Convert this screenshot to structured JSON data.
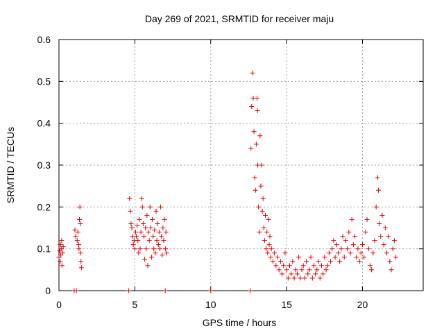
{
  "chart_data": {
    "type": "scatter",
    "title": "Day 269 of 2021, SRMTID for receiver maju",
    "xlabel": "GPS time / hours",
    "ylabel": "SRMTID / TECUs",
    "xlim": [
      0,
      24
    ],
    "ylim": [
      0,
      0.6
    ],
    "xticks": [
      0,
      5,
      10,
      15,
      20
    ],
    "yticks": [
      0,
      0.1,
      0.2,
      0.3,
      0.4,
      0.5,
      0.6
    ],
    "xtick_labels": [
      "0",
      "5",
      "10",
      "15",
      "20"
    ],
    "ytick_labels": [
      "0",
      "0.1",
      "0.2",
      "0.3",
      "0.4",
      "0.5",
      "0.6"
    ],
    "grid": true,
    "marker": "+",
    "series": [
      {
        "name": "SRMTID",
        "color": "#e00000",
        "points": [
          [
            0.0,
            0.08
          ],
          [
            0.05,
            0.095
          ],
          [
            0.08,
            0.07
          ],
          [
            0.1,
            0.11
          ],
          [
            0.12,
            0.085
          ],
          [
            0.15,
            0.1
          ],
          [
            0.18,
            0.12
          ],
          [
            0.2,
            0.06
          ],
          [
            0.25,
            0.09
          ],
          [
            0.28,
            0.105
          ],
          [
            1.0,
            0.0
          ],
          [
            1.15,
            0.0
          ],
          [
            1.05,
            0.145
          ],
          [
            1.1,
            0.13
          ],
          [
            1.2,
            0.12
          ],
          [
            1.25,
            0.14
          ],
          [
            1.3,
            0.11
          ],
          [
            1.32,
            0.1
          ],
          [
            1.35,
            0.17
          ],
          [
            1.38,
            0.2
          ],
          [
            1.4,
            0.16
          ],
          [
            1.42,
            0.09
          ],
          [
            1.45,
            0.07
          ],
          [
            1.48,
            0.055
          ],
          [
            4.6,
            0.0
          ],
          [
            4.65,
            0.22
          ],
          [
            4.7,
            0.19
          ],
          [
            4.75,
            0.16
          ],
          [
            4.8,
            0.15
          ],
          [
            4.85,
            0.13
          ],
          [
            4.9,
            0.11
          ],
          [
            4.95,
            0.12
          ],
          [
            5.0,
            0.1
          ],
          [
            5.05,
            0.14
          ],
          [
            5.1,
            0.13
          ],
          [
            5.15,
            0.155
          ],
          [
            5.2,
            0.12
          ],
          [
            5.25,
            0.09
          ],
          [
            5.3,
            0.17
          ],
          [
            5.35,
            0.1
          ],
          [
            5.4,
            0.14
          ],
          [
            5.45,
            0.22
          ],
          [
            5.5,
            0.2
          ],
          [
            5.55,
            0.16
          ],
          [
            5.6,
            0.13
          ],
          [
            5.65,
            0.075
          ],
          [
            5.7,
            0.15
          ],
          [
            5.75,
            0.1
          ],
          [
            5.8,
            0.18
          ],
          [
            5.85,
            0.06
          ],
          [
            5.9,
            0.14
          ],
          [
            5.95,
            0.12
          ],
          [
            6.0,
            0.2
          ],
          [
            6.05,
            0.15
          ],
          [
            6.1,
            0.08
          ],
          [
            6.15,
            0.17
          ],
          [
            6.2,
            0.13
          ],
          [
            6.25,
            0.1
          ],
          [
            6.3,
            0.145
          ],
          [
            6.35,
            0.09
          ],
          [
            6.4,
            0.19
          ],
          [
            6.45,
            0.12
          ],
          [
            6.5,
            0.16
          ],
          [
            6.55,
            0.11
          ],
          [
            6.6,
            0.14
          ],
          [
            6.65,
            0.1
          ],
          [
            6.7,
            0.2
          ],
          [
            6.75,
            0.13
          ],
          [
            6.8,
            0.085
          ],
          [
            6.85,
            0.15
          ],
          [
            6.9,
            0.12
          ],
          [
            6.95,
            0.17
          ],
          [
            7.0,
            0.0
          ],
          [
            7.02,
            0.1
          ],
          [
            7.05,
            0.14
          ],
          [
            7.1,
            0.09
          ],
          [
            10.0,
            0.0
          ],
          [
            12.6,
            0.0
          ],
          [
            12.65,
            0.34
          ],
          [
            12.7,
            0.44
          ],
          [
            12.75,
            0.52
          ],
          [
            12.8,
            0.46
          ],
          [
            12.85,
            0.38
          ],
          [
            12.9,
            0.27
          ],
          [
            12.95,
            0.24
          ],
          [
            13.0,
            0.35
          ],
          [
            13.05,
            0.46
          ],
          [
            13.08,
            0.43
          ],
          [
            13.1,
            0.3
          ],
          [
            13.15,
            0.2
          ],
          [
            13.2,
            0.14
          ],
          [
            13.25,
            0.37
          ],
          [
            13.3,
            0.25
          ],
          [
            13.35,
            0.3
          ],
          [
            13.4,
            0.19
          ],
          [
            13.45,
            0.22
          ],
          [
            13.5,
            0.15
          ],
          [
            13.55,
            0.12
          ],
          [
            13.6,
            0.18
          ],
          [
            13.65,
            0.1
          ],
          [
            13.7,
            0.14
          ],
          [
            13.75,
            0.09
          ],
          [
            13.8,
            0.17
          ],
          [
            13.85,
            0.11
          ],
          [
            13.9,
            0.13
          ],
          [
            13.95,
            0.08
          ],
          [
            14.0,
            0.1
          ],
          [
            14.1,
            0.07
          ],
          [
            14.2,
            0.09
          ],
          [
            14.3,
            0.06
          ],
          [
            14.4,
            0.08
          ],
          [
            14.5,
            0.05
          ],
          [
            14.6,
            0.07
          ],
          [
            14.7,
            0.04
          ],
          [
            14.8,
            0.06
          ],
          [
            14.9,
            0.09
          ],
          [
            15.0,
            0.05
          ],
          [
            15.1,
            0.03
          ],
          [
            15.2,
            0.06
          ],
          [
            15.3,
            0.04
          ],
          [
            15.4,
            0.07
          ],
          [
            15.5,
            0.03
          ],
          [
            15.6,
            0.05
          ],
          [
            15.7,
            0.04
          ],
          [
            15.8,
            0.08
          ],
          [
            15.9,
            0.03
          ],
          [
            16.0,
            0.05
          ],
          [
            16.1,
            0.06
          ],
          [
            16.2,
            0.03
          ],
          [
            16.3,
            0.07
          ],
          [
            16.4,
            0.04
          ],
          [
            16.5,
            0.05
          ],
          [
            16.6,
            0.08
          ],
          [
            16.7,
            0.03
          ],
          [
            16.8,
            0.06
          ],
          [
            16.9,
            0.04
          ],
          [
            17.0,
            0.05
          ],
          [
            17.1,
            0.07
          ],
          [
            17.2,
            0.03
          ],
          [
            17.3,
            0.06
          ],
          [
            17.4,
            0.04
          ],
          [
            17.5,
            0.08
          ],
          [
            17.6,
            0.05
          ],
          [
            17.7,
            0.06
          ],
          [
            17.8,
            0.09
          ],
          [
            17.9,
            0.07
          ],
          [
            18.0,
            0.1
          ],
          [
            18.1,
            0.12
          ],
          [
            18.2,
            0.08
          ],
          [
            18.3,
            0.11
          ],
          [
            18.4,
            0.09
          ],
          [
            18.5,
            0.07
          ],
          [
            18.6,
            0.1
          ],
          [
            18.7,
            0.13
          ],
          [
            18.8,
            0.08
          ],
          [
            18.9,
            0.12
          ],
          [
            19.0,
            0.1
          ],
          [
            19.1,
            0.14
          ],
          [
            19.2,
            0.09
          ],
          [
            19.3,
            0.17
          ],
          [
            19.4,
            0.11
          ],
          [
            19.5,
            0.13
          ],
          [
            19.6,
            0.08
          ],
          [
            19.7,
            0.1
          ],
          [
            19.8,
            0.07
          ],
          [
            19.9,
            0.09
          ],
          [
            20.0,
            0.11
          ],
          [
            20.1,
            0.08
          ],
          [
            20.2,
            0.14
          ],
          [
            20.3,
            0.17
          ],
          [
            20.4,
            0.1
          ],
          [
            20.5,
            0.06
          ],
          [
            20.6,
            0.05
          ],
          [
            20.7,
            0.09
          ],
          [
            20.8,
            0.12
          ],
          [
            20.9,
            0.2
          ],
          [
            21.0,
            0.27
          ],
          [
            21.05,
            0.24
          ],
          [
            21.1,
            0.16
          ],
          [
            21.2,
            0.13
          ],
          [
            21.3,
            0.18
          ],
          [
            21.4,
            0.11
          ],
          [
            21.5,
            0.15
          ],
          [
            21.6,
            0.09
          ],
          [
            21.7,
            0.13
          ],
          [
            21.8,
            0.07
          ],
          [
            21.9,
            0.05
          ],
          [
            22.0,
            0.1
          ],
          [
            22.1,
            0.12
          ],
          [
            22.2,
            0.08
          ]
        ]
      }
    ]
  }
}
